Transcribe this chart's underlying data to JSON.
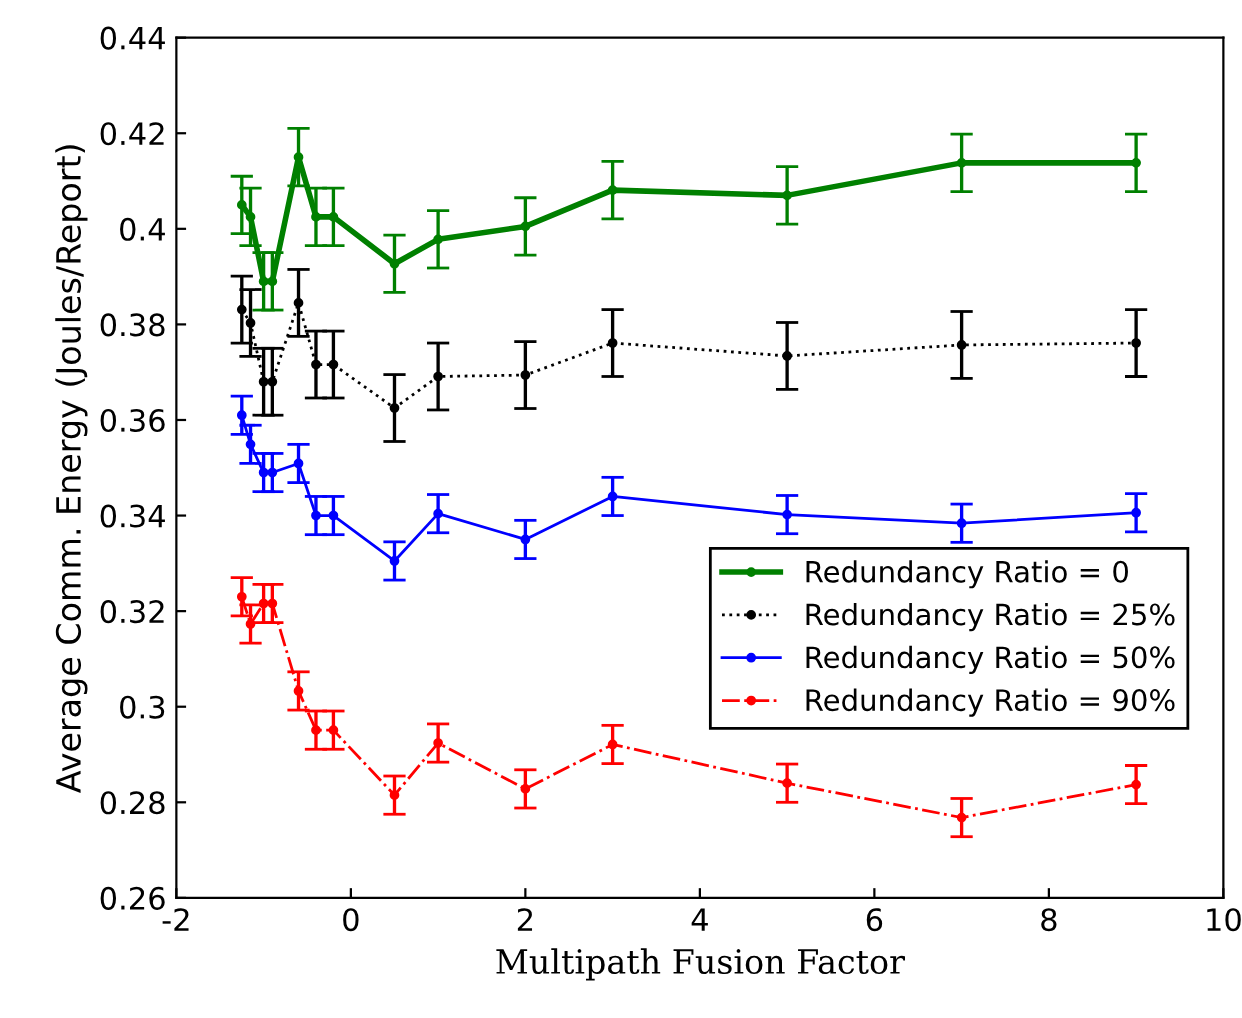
{
  "chart_data": {
    "type": "line",
    "xlabel": "Multipath Fusion Factor",
    "ylabel": "Average Comm. Energy (Joules/Report)",
    "xlim": [
      -2,
      10
    ],
    "xticks": [
      -2,
      0,
      2,
      4,
      6,
      8,
      10
    ],
    "ylim": [
      0.26,
      0.44
    ],
    "yticks": [
      0.26,
      0.28,
      0.3,
      0.32,
      0.34,
      0.36,
      0.38,
      0.4,
      0.42,
      0.44
    ],
    "grid": false,
    "legend": "lower right",
    "marker": "circle",
    "x": [
      -1.25,
      -1.15,
      -1,
      -0.9,
      -0.6,
      -0.4,
      -0.2,
      0.5,
      1,
      2,
      3,
      5,
      7,
      9
    ],
    "series": [
      {
        "name": "Redundancy Ratio = 0",
        "color": "#008000",
        "line_style": "solid",
        "values": [
          0.405,
          0.4025,
          0.389,
          0.389,
          0.415,
          0.4025,
          0.4025,
          0.3927,
          0.3978,
          0.4005,
          0.4081,
          0.407,
          0.4138,
          0.4138
        ],
        "errors": [
          0.006,
          0.006,
          0.006,
          0.006,
          0.006,
          0.006,
          0.006,
          0.006,
          0.006,
          0.006,
          0.006,
          0.006,
          0.006,
          0.006
        ]
      },
      {
        "name": "Redundancy Ratio = 25%",
        "color": "#000000",
        "line_style": "dotted",
        "values": [
          0.3831,
          0.3803,
          0.368,
          0.368,
          0.3845,
          0.3716,
          0.3716,
          0.3625,
          0.3691,
          0.3694,
          0.3761,
          0.3734,
          0.3757,
          0.3761
        ],
        "errors": [
          0.007,
          0.007,
          0.007,
          0.007,
          0.007,
          0.007,
          0.007,
          0.007,
          0.007,
          0.007,
          0.007,
          0.007,
          0.007,
          0.007
        ]
      },
      {
        "name": "Redundancy Ratio = 50%",
        "color": "#0000ff",
        "line_style": "solid",
        "values": [
          0.361,
          0.3549,
          0.349,
          0.349,
          0.3509,
          0.34,
          0.34,
          0.3305,
          0.3404,
          0.335,
          0.344,
          0.3402,
          0.3384,
          0.3406
        ],
        "errors": [
          0.004,
          0.004,
          0.004,
          0.004,
          0.004,
          0.004,
          0.004,
          0.004,
          0.004,
          0.004,
          0.004,
          0.004,
          0.004,
          0.004
        ]
      },
      {
        "name": "Redundancy Ratio = 90%",
        "color": "#ff0000",
        "line_style": "dashdot",
        "values": [
          0.323,
          0.3173,
          0.3216,
          0.3216,
          0.3033,
          0.2951,
          0.2951,
          0.2815,
          0.2924,
          0.2828,
          0.2921,
          0.284,
          0.2768,
          0.2837
        ],
        "errors": [
          0.004,
          0.004,
          0.004,
          0.004,
          0.004,
          0.004,
          0.004,
          0.004,
          0.004,
          0.004,
          0.004,
          0.004,
          0.004,
          0.004
        ]
      }
    ]
  }
}
